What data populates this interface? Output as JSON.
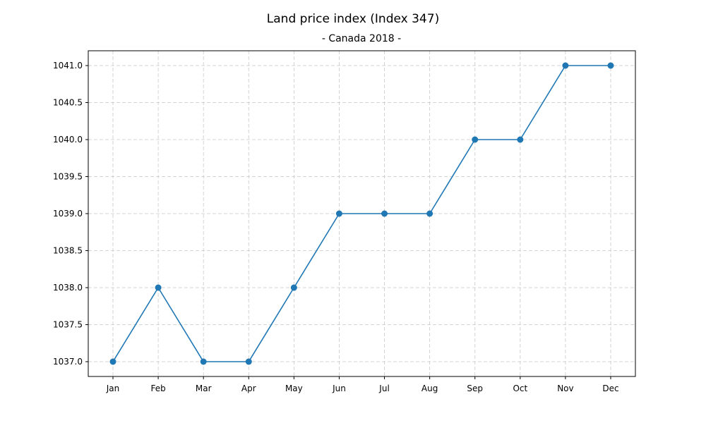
{
  "chart_data": {
    "type": "line",
    "title": "Land price index (Index 347)",
    "subtitle": "- Canada 2018 -",
    "xlabel": "",
    "ylabel": "",
    "categories": [
      "Jan",
      "Feb",
      "Mar",
      "Apr",
      "May",
      "Jun",
      "Jul",
      "Aug",
      "Sep",
      "Oct",
      "Nov",
      "Dec"
    ],
    "series": [
      {
        "values": [
          1037.0,
          1038.0,
          1037.0,
          1037.0,
          1038.0,
          1039.0,
          1039.0,
          1039.0,
          1040.0,
          1040.0,
          1041.0,
          1041.0
        ],
        "color": "#1f77b4"
      }
    ],
    "yticks": [
      "1037.0",
      "1037.5",
      "1038.0",
      "1038.5",
      "1039.0",
      "1039.5",
      "1040.0",
      "1040.5",
      "1041.0"
    ],
    "ylim": [
      1036.8,
      1041.2
    ],
    "grid": true,
    "legend": "none"
  }
}
